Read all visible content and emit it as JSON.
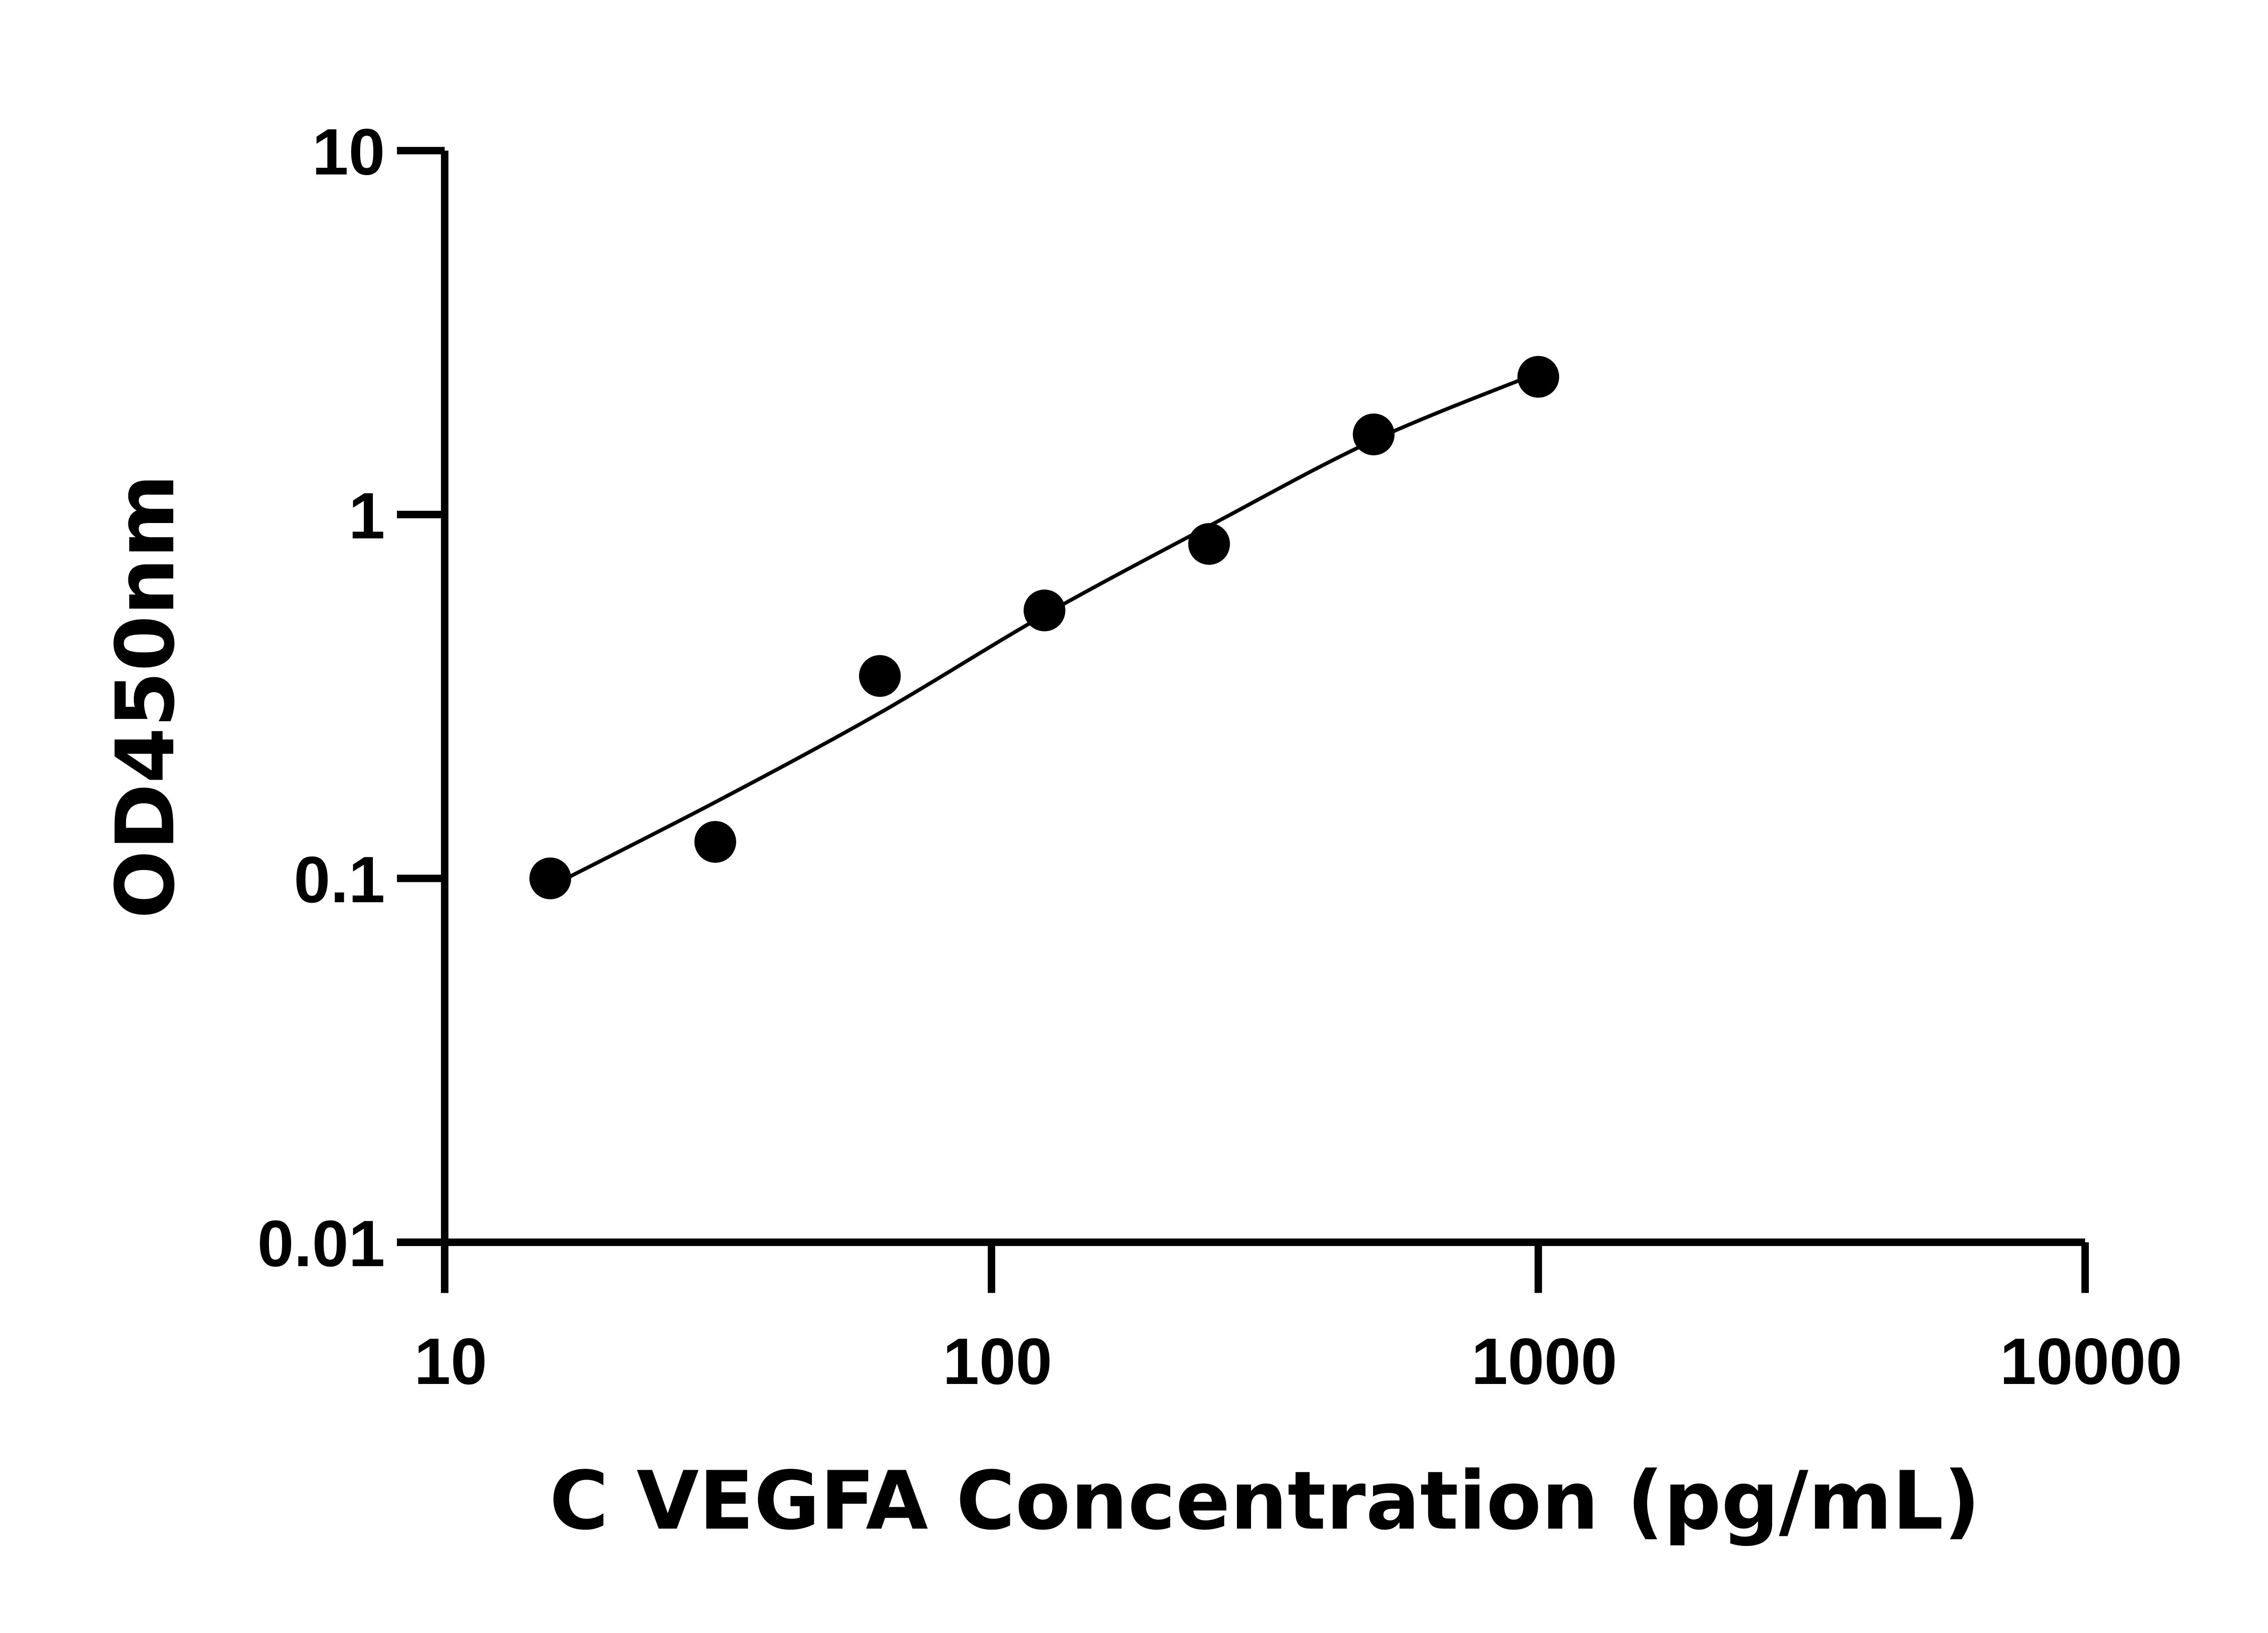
{
  "chart_data": {
    "type": "scatter",
    "title": "",
    "xlabel": "C VEGFA Concentration (pg/mL)",
    "ylabel": "OD450nm",
    "x_scale": "log",
    "y_scale": "log",
    "xlim": [
      10,
      10000
    ],
    "ylim": [
      0.01,
      10
    ],
    "x_ticks": [
      10,
      100,
      1000,
      10000
    ],
    "x_tick_labels": [
      "10",
      "100",
      "1000",
      "10000"
    ],
    "y_ticks": [
      0.01,
      0.1,
      1,
      10
    ],
    "y_tick_labels": [
      "0.01",
      "0.1",
      "1",
      "10"
    ],
    "grid": false,
    "legend": "none",
    "marker_color": "#000000",
    "points": [
      {
        "x": 15.6,
        "y": 0.1
      },
      {
        "x": 31.25,
        "y": 0.126
      },
      {
        "x": 62.5,
        "y": 0.36
      },
      {
        "x": 125,
        "y": 0.545
      },
      {
        "x": 250,
        "y": 0.83
      },
      {
        "x": 500,
        "y": 1.66
      },
      {
        "x": 1000,
        "y": 2.39
      }
    ],
    "fit_curve": [
      {
        "x": 15.6,
        "y": 0.095
      },
      {
        "x": 31.25,
        "y": 0.162
      },
      {
        "x": 62.5,
        "y": 0.285
      },
      {
        "x": 125,
        "y": 0.53
      },
      {
        "x": 250,
        "y": 0.93
      },
      {
        "x": 500,
        "y": 1.6
      },
      {
        "x": 1000,
        "y": 2.45
      }
    ]
  }
}
